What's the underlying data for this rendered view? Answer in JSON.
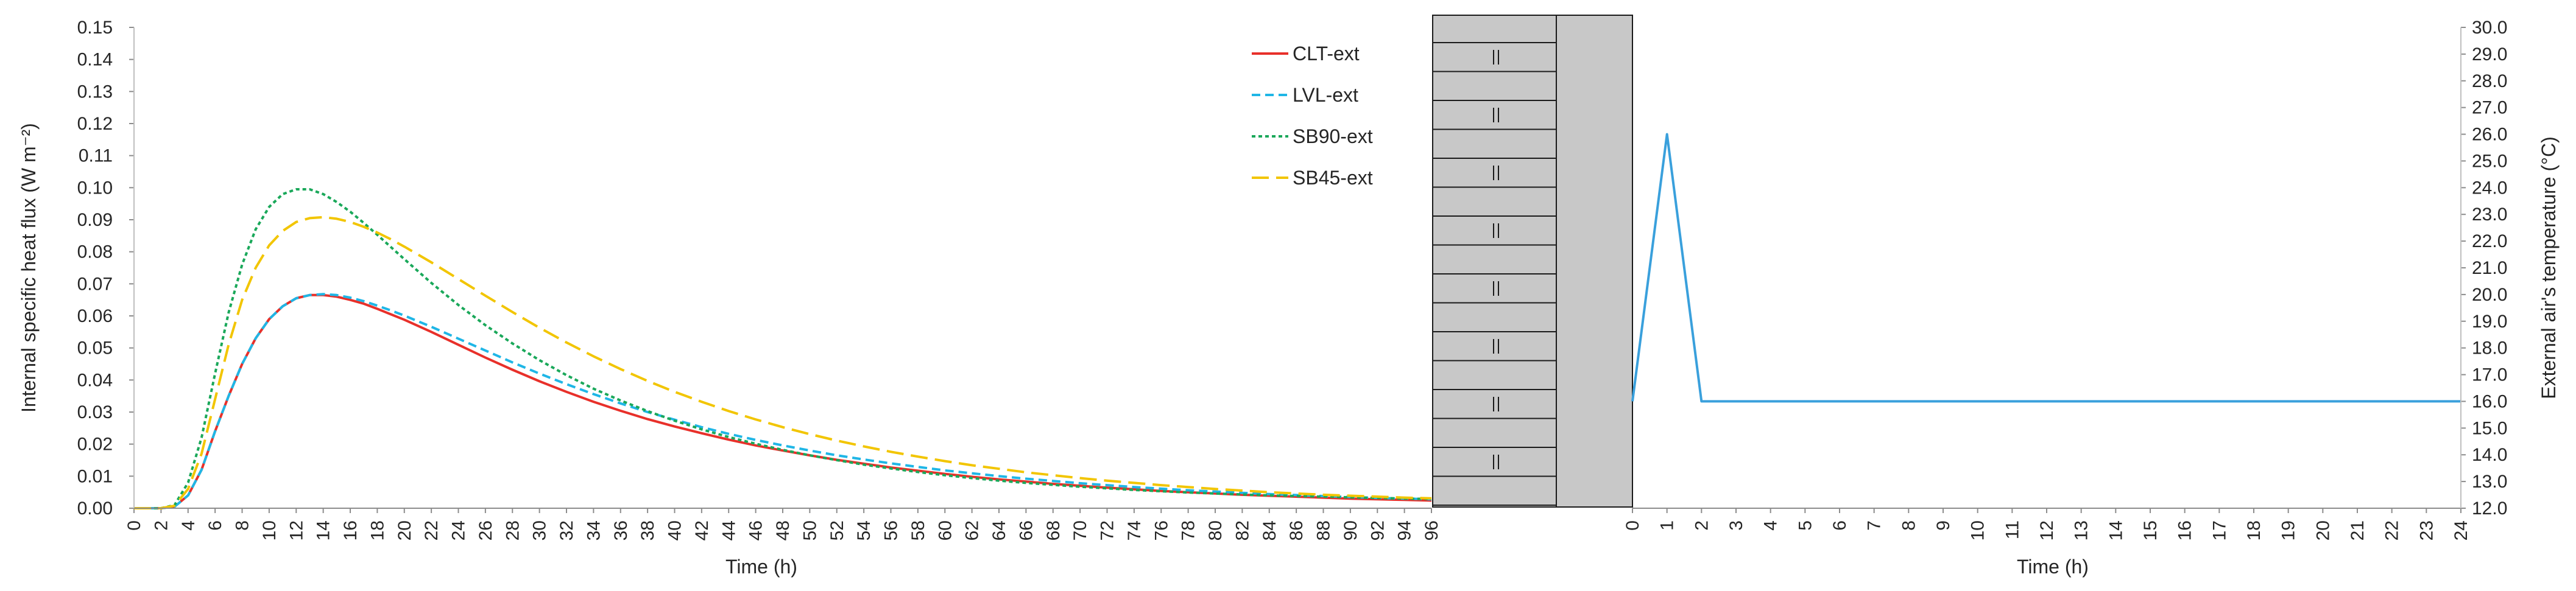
{
  "chart_data": [
    {
      "type": "line",
      "xlabel": "Time (h)",
      "ylabel": "Internal specific heat flux (W m⁻²)",
      "xlim": [
        0,
        96
      ],
      "ylim": [
        0,
        0.15
      ],
      "x_ticks": [
        0,
        2,
        4,
        6,
        8,
        10,
        12,
        14,
        16,
        18,
        20,
        22,
        24,
        26,
        28,
        30,
        32,
        34,
        36,
        38,
        40,
        42,
        44,
        46,
        48,
        50,
        52,
        54,
        56,
        58,
        60,
        62,
        64,
        66,
        68,
        70,
        72,
        74,
        76,
        78,
        80,
        82,
        84,
        86,
        88,
        90,
        92,
        94,
        96
      ],
      "y_ticks": [
        "0.00",
        "0.01",
        "0.02",
        "0.03",
        "0.04",
        "0.05",
        "0.06",
        "0.07",
        "0.08",
        "0.09",
        "0.10",
        "0.11",
        "0.12",
        "0.13",
        "0.14",
        "0.15"
      ],
      "legend_position": "top-right",
      "grid": false,
      "series": [
        {
          "name": "CLT-ext",
          "color": "#e8302a",
          "dash": "solid",
          "x": [
            0,
            1,
            2,
            3,
            4,
            5,
            6,
            7,
            8,
            9,
            10,
            11,
            12,
            13,
            14,
            15,
            16,
            17,
            18,
            19,
            20,
            22,
            24,
            26,
            28,
            30,
            32,
            34,
            36,
            38,
            40,
            42,
            44,
            46,
            48,
            50,
            52,
            54,
            56,
            58,
            60,
            62,
            64,
            66,
            68,
            70,
            72,
            74,
            76,
            78,
            80,
            82,
            84,
            86,
            88,
            90,
            92,
            94,
            96
          ],
          "values": [
            0,
            0,
            0,
            0.0005,
            0.004,
            0.012,
            0.024,
            0.035,
            0.045,
            0.053,
            0.059,
            0.063,
            0.0655,
            0.0665,
            0.0665,
            0.066,
            0.065,
            0.0638,
            0.0622,
            0.0605,
            0.0588,
            0.055,
            0.051,
            0.047,
            0.0432,
            0.0396,
            0.0363,
            0.0332,
            0.0304,
            0.0278,
            0.0255,
            0.0234,
            0.0214,
            0.0196,
            0.018,
            0.0165,
            0.0151,
            0.0139,
            0.0127,
            0.0117,
            0.0107,
            0.0098,
            0.009,
            0.0083,
            0.0076,
            0.007,
            0.0064,
            0.0059,
            0.0054,
            0.005,
            0.0046,
            0.0042,
            0.0039,
            0.0036,
            0.0033,
            0.003,
            0.0028,
            0.0026,
            0.0024
          ]
        },
        {
          "name": "LVL-ext",
          "color": "#1fb6e6",
          "dash": "dashed",
          "x": [
            0,
            1,
            2,
            3,
            4,
            5,
            6,
            7,
            8,
            9,
            10,
            11,
            12,
            13,
            14,
            15,
            16,
            17,
            18,
            19,
            20,
            22,
            24,
            26,
            28,
            30,
            32,
            34,
            36,
            38,
            40,
            42,
            44,
            46,
            48,
            50,
            52,
            54,
            56,
            58,
            60,
            62,
            64,
            66,
            68,
            70,
            72,
            74,
            76,
            78,
            80,
            82,
            84,
            86,
            88,
            90,
            92,
            94,
            96
          ],
          "values": [
            0,
            0,
            0,
            0.0005,
            0.004,
            0.012,
            0.024,
            0.035,
            0.045,
            0.053,
            0.059,
            0.063,
            0.0655,
            0.0665,
            0.0668,
            0.0665,
            0.0657,
            0.0646,
            0.0632,
            0.0617,
            0.0601,
            0.0566,
            0.0529,
            0.0492,
            0.0455,
            0.042,
            0.0387,
            0.0356,
            0.0327,
            0.03,
            0.0276,
            0.0253,
            0.0232,
            0.0213,
            0.0196,
            0.018,
            0.0165,
            0.0152,
            0.014,
            0.0129,
            0.0118,
            0.0109,
            0.01,
            0.0092,
            0.0085,
            0.0078,
            0.0072,
            0.0066,
            0.0061,
            0.0056,
            0.0052,
            0.0048,
            0.0044,
            0.0041,
            0.0038,
            0.0035,
            0.0032,
            0.003,
            0.0028
          ]
        },
        {
          "name": "SB90-ext",
          "color": "#1aa85a",
          "dash": "dotted",
          "x": [
            0,
            1,
            2,
            3,
            4,
            5,
            6,
            7,
            8,
            9,
            10,
            11,
            12,
            13,
            14,
            15,
            16,
            17,
            18,
            19,
            20,
            22,
            24,
            26,
            28,
            30,
            32,
            34,
            36,
            38,
            40,
            42,
            44,
            46,
            48,
            50,
            52,
            54,
            56,
            58,
            60,
            62,
            64,
            66,
            68,
            70,
            72,
            74,
            76,
            78,
            80,
            82,
            84,
            86,
            88,
            90,
            92,
            94,
            96
          ],
          "values": [
            0,
            0,
            0,
            0.001,
            0.008,
            0.022,
            0.042,
            0.061,
            0.076,
            0.087,
            0.094,
            0.098,
            0.0995,
            0.0995,
            0.098,
            0.0955,
            0.0925,
            0.089,
            0.0853,
            0.0815,
            0.0777,
            0.0703,
            0.0634,
            0.0571,
            0.0514,
            0.0462,
            0.0415,
            0.0373,
            0.0336,
            0.0303,
            0.0273,
            0.0246,
            0.0222,
            0.0201,
            0.0182,
            0.0165,
            0.015,
            0.0136,
            0.0124,
            0.0113,
            0.0103,
            0.0094,
            0.0086,
            0.0079,
            0.0073,
            0.0067,
            0.0062,
            0.0057,
            0.0053,
            0.0049,
            0.0046,
            0.0043,
            0.004,
            0.0038,
            0.0036,
            0.0034,
            0.0032,
            0.003,
            0.0029
          ]
        },
        {
          "name": "SB45-ext",
          "color": "#f2c500",
          "dash": "long-dashed",
          "x": [
            0,
            1,
            2,
            3,
            4,
            5,
            6,
            7,
            8,
            9,
            10,
            11,
            12,
            13,
            14,
            15,
            16,
            17,
            18,
            19,
            20,
            22,
            24,
            26,
            28,
            30,
            32,
            34,
            36,
            38,
            40,
            42,
            44,
            46,
            48,
            50,
            52,
            54,
            56,
            58,
            60,
            62,
            64,
            66,
            68,
            70,
            72,
            74,
            76,
            78,
            80,
            82,
            84,
            86,
            88,
            90,
            92,
            94,
            96
          ],
          "values": [
            0,
            0,
            0,
            0.0008,
            0.006,
            0.017,
            0.034,
            0.051,
            0.065,
            0.075,
            0.082,
            0.0865,
            0.0893,
            0.0905,
            0.0908,
            0.0903,
            0.0893,
            0.0878,
            0.086,
            0.0839,
            0.0816,
            0.0767,
            0.0715,
            0.0663,
            0.0612,
            0.0563,
            0.0517,
            0.0474,
            0.0434,
            0.0397,
            0.0363,
            0.0332,
            0.0303,
            0.0277,
            0.0253,
            0.0231,
            0.0211,
            0.0193,
            0.0176,
            0.0161,
            0.0147,
            0.0134,
            0.0123,
            0.0112,
            0.0103,
            0.0094,
            0.0086,
            0.0079,
            0.0072,
            0.0066,
            0.006,
            0.0055,
            0.005,
            0.0046,
            0.0042,
            0.0039,
            0.0036,
            0.0033,
            0.0031
          ]
        }
      ]
    },
    {
      "type": "line",
      "xlabel": "Time (h)",
      "ylabel": "External air's temperature (°C)",
      "xlim": [
        0,
        24
      ],
      "ylim": [
        12,
        30
      ],
      "x_ticks": [
        0,
        1,
        2,
        3,
        4,
        5,
        6,
        7,
        8,
        9,
        10,
        11,
        12,
        13,
        14,
        15,
        16,
        17,
        18,
        19,
        20,
        21,
        22,
        23,
        24
      ],
      "y_ticks": [
        "12.0",
        "13.0",
        "14.0",
        "15.0",
        "16.0",
        "17.0",
        "18.0",
        "19.0",
        "20.0",
        "21.0",
        "22.0",
        "23.0",
        "24.0",
        "25.0",
        "26.0",
        "27.0",
        "28.0",
        "29.0",
        "30.0"
      ],
      "grid": false,
      "series": [
        {
          "color": "#3aa0dc",
          "x": [
            0,
            1,
            2,
            24
          ],
          "values": [
            16.0,
            26.0,
            16.0,
            16.0
          ]
        }
      ]
    }
  ],
  "wall_drawing": {
    "fill_color": "#c8c8c8",
    "line_color": "#1a1a1a"
  }
}
